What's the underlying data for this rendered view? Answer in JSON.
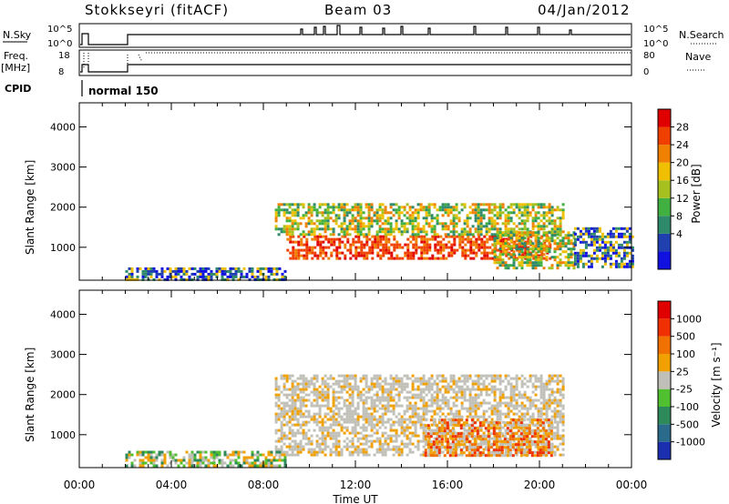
{
  "header": {
    "station": "Stokkseyri (fitACF)",
    "beam": "Beam 03",
    "date": "04/Jan/2012"
  },
  "strips": {
    "nsky_label": "N.Sky",
    "nsky_ticks": [
      "10^5",
      "10^0"
    ],
    "nsearch_label": "N.Search",
    "nsearch_ticks": [
      "10^5",
      "10^0"
    ],
    "freq_label": "Freq.",
    "freq_unit": "[MHz]",
    "freq_ticks": [
      "18",
      "8"
    ],
    "nave_label": "Nave",
    "nave_ticks": [
      "80",
      "0"
    ],
    "cpid_label": "CPID",
    "cpid_text": "normal 150"
  },
  "colorbars": {
    "power": {
      "label": "Power [dB]",
      "ticks": [
        "28",
        "24",
        "20",
        "16",
        "12",
        "8",
        "4"
      ],
      "colors": [
        "#1010e0",
        "#2040b0",
        "#2e8a6a",
        "#40b040",
        "#a6c020",
        "#f0c000",
        "#f08000",
        "#f04000",
        "#e00000"
      ]
    },
    "velocity": {
      "label": "Velocity [m s⁻¹]",
      "ticks": [
        "1000",
        "500",
        "100",
        "25",
        "-25",
        "-100",
        "-500",
        "-1000"
      ],
      "colors": [
        "#1a2eb0",
        "#2a6a8a",
        "#2e8a5a",
        "#50c030",
        "#c0c0b8",
        "#f0a000",
        "#f07000",
        "#f03000",
        "#e00000"
      ]
    }
  },
  "axes": {
    "ylabel": "Slant Range [km]",
    "yticks": [
      "4000",
      "3000",
      "2000",
      "1000"
    ],
    "xlabel": "Time UT",
    "xticks": [
      "00:00",
      "04:00",
      "08:00",
      "12:00",
      "16:00",
      "20:00",
      "00:00"
    ]
  },
  "chart_data": {
    "type": "heatmap",
    "x_unit": "hours UT",
    "x_range": [
      0,
      24
    ],
    "y_range_km": [
      180,
      4600
    ],
    "power_regions": [
      {
        "t0": 9.0,
        "t1": 20.5,
        "r0": 700,
        "r1": 1300,
        "level": "high"
      },
      {
        "t0": 8.5,
        "t1": 21.0,
        "r0": 1300,
        "r1": 2100,
        "level": "medium"
      },
      {
        "t0": 18.0,
        "t1": 21.5,
        "r0": 500,
        "r1": 1400,
        "level": "medium"
      },
      {
        "t0": 2.0,
        "t1": 9.0,
        "r0": 200,
        "r1": 500,
        "level": "low"
      },
      {
        "t0": 21.5,
        "t1": 24.0,
        "r0": 500,
        "r1": 1500,
        "level": "low"
      }
    ],
    "velocity_regions": [
      {
        "t0": 8.5,
        "t1": 21.0,
        "r0": 500,
        "r1": 2500,
        "class": "ground"
      },
      {
        "t0": 2.0,
        "t1": 9.0,
        "r0": 200,
        "r1": 600,
        "class": "toward"
      },
      {
        "t0": 15.0,
        "t1": 20.5,
        "r0": 500,
        "r1": 1400,
        "class": "away"
      }
    ]
  }
}
